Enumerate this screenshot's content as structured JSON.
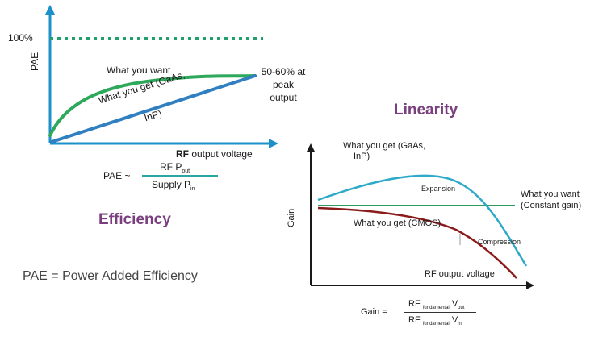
{
  "efficiency": {
    "y_axis_label": "PAE",
    "y_max_label": "100%",
    "x_axis_label_bold": "RF",
    "x_axis_label_rest": " output voltage",
    "curve_want_label": "What you want",
    "curve_get_label_line1": "What you get (GaAs,",
    "curve_get_label_line2": "InP)",
    "peak_note_line1": "50-60% at",
    "peak_note_line2": "peak",
    "peak_note_line3": "output",
    "formula_lhs": "PAE ~",
    "formula_num_main": "RF P",
    "formula_num_sub": "out",
    "formula_den_main": "Supply P",
    "formula_den_sub": "in",
    "title": "Efficiency",
    "definition": "PAE = Power Added Efficiency",
    "colors": {
      "axis": "#1d8fc9",
      "want": "#2ea85a",
      "get": "#2f7fc1",
      "dotted": "#22a06b"
    }
  },
  "linearity": {
    "title": "Linearity",
    "y_axis_label": "Gain",
    "x_axis_label": "RF output voltage",
    "gaas_label_line1": "What you get (GaAs,",
    "gaas_label_line2": "InP)",
    "expansion_label": "Expansion",
    "want_label_line1": "What you want",
    "want_label_line2": "(Constant gain)",
    "cmos_label": "What you get (CMOS)",
    "compression_label": "Compression",
    "formula_lhs": "Gain =",
    "formula_num_main": "RF",
    "formula_num_sub": "fundamental",
    "formula_num_v": "V",
    "formula_num_vsub": "out",
    "formula_den_main": "RF",
    "formula_den_sub": "fundamental",
    "formula_den_v": "V",
    "formula_den_vsub": "in",
    "colors": {
      "axis": "#1a1a1a",
      "gaas": "#2ea9c9",
      "want": "#2e9a5c",
      "cmos": "#8b1a1a"
    }
  }
}
